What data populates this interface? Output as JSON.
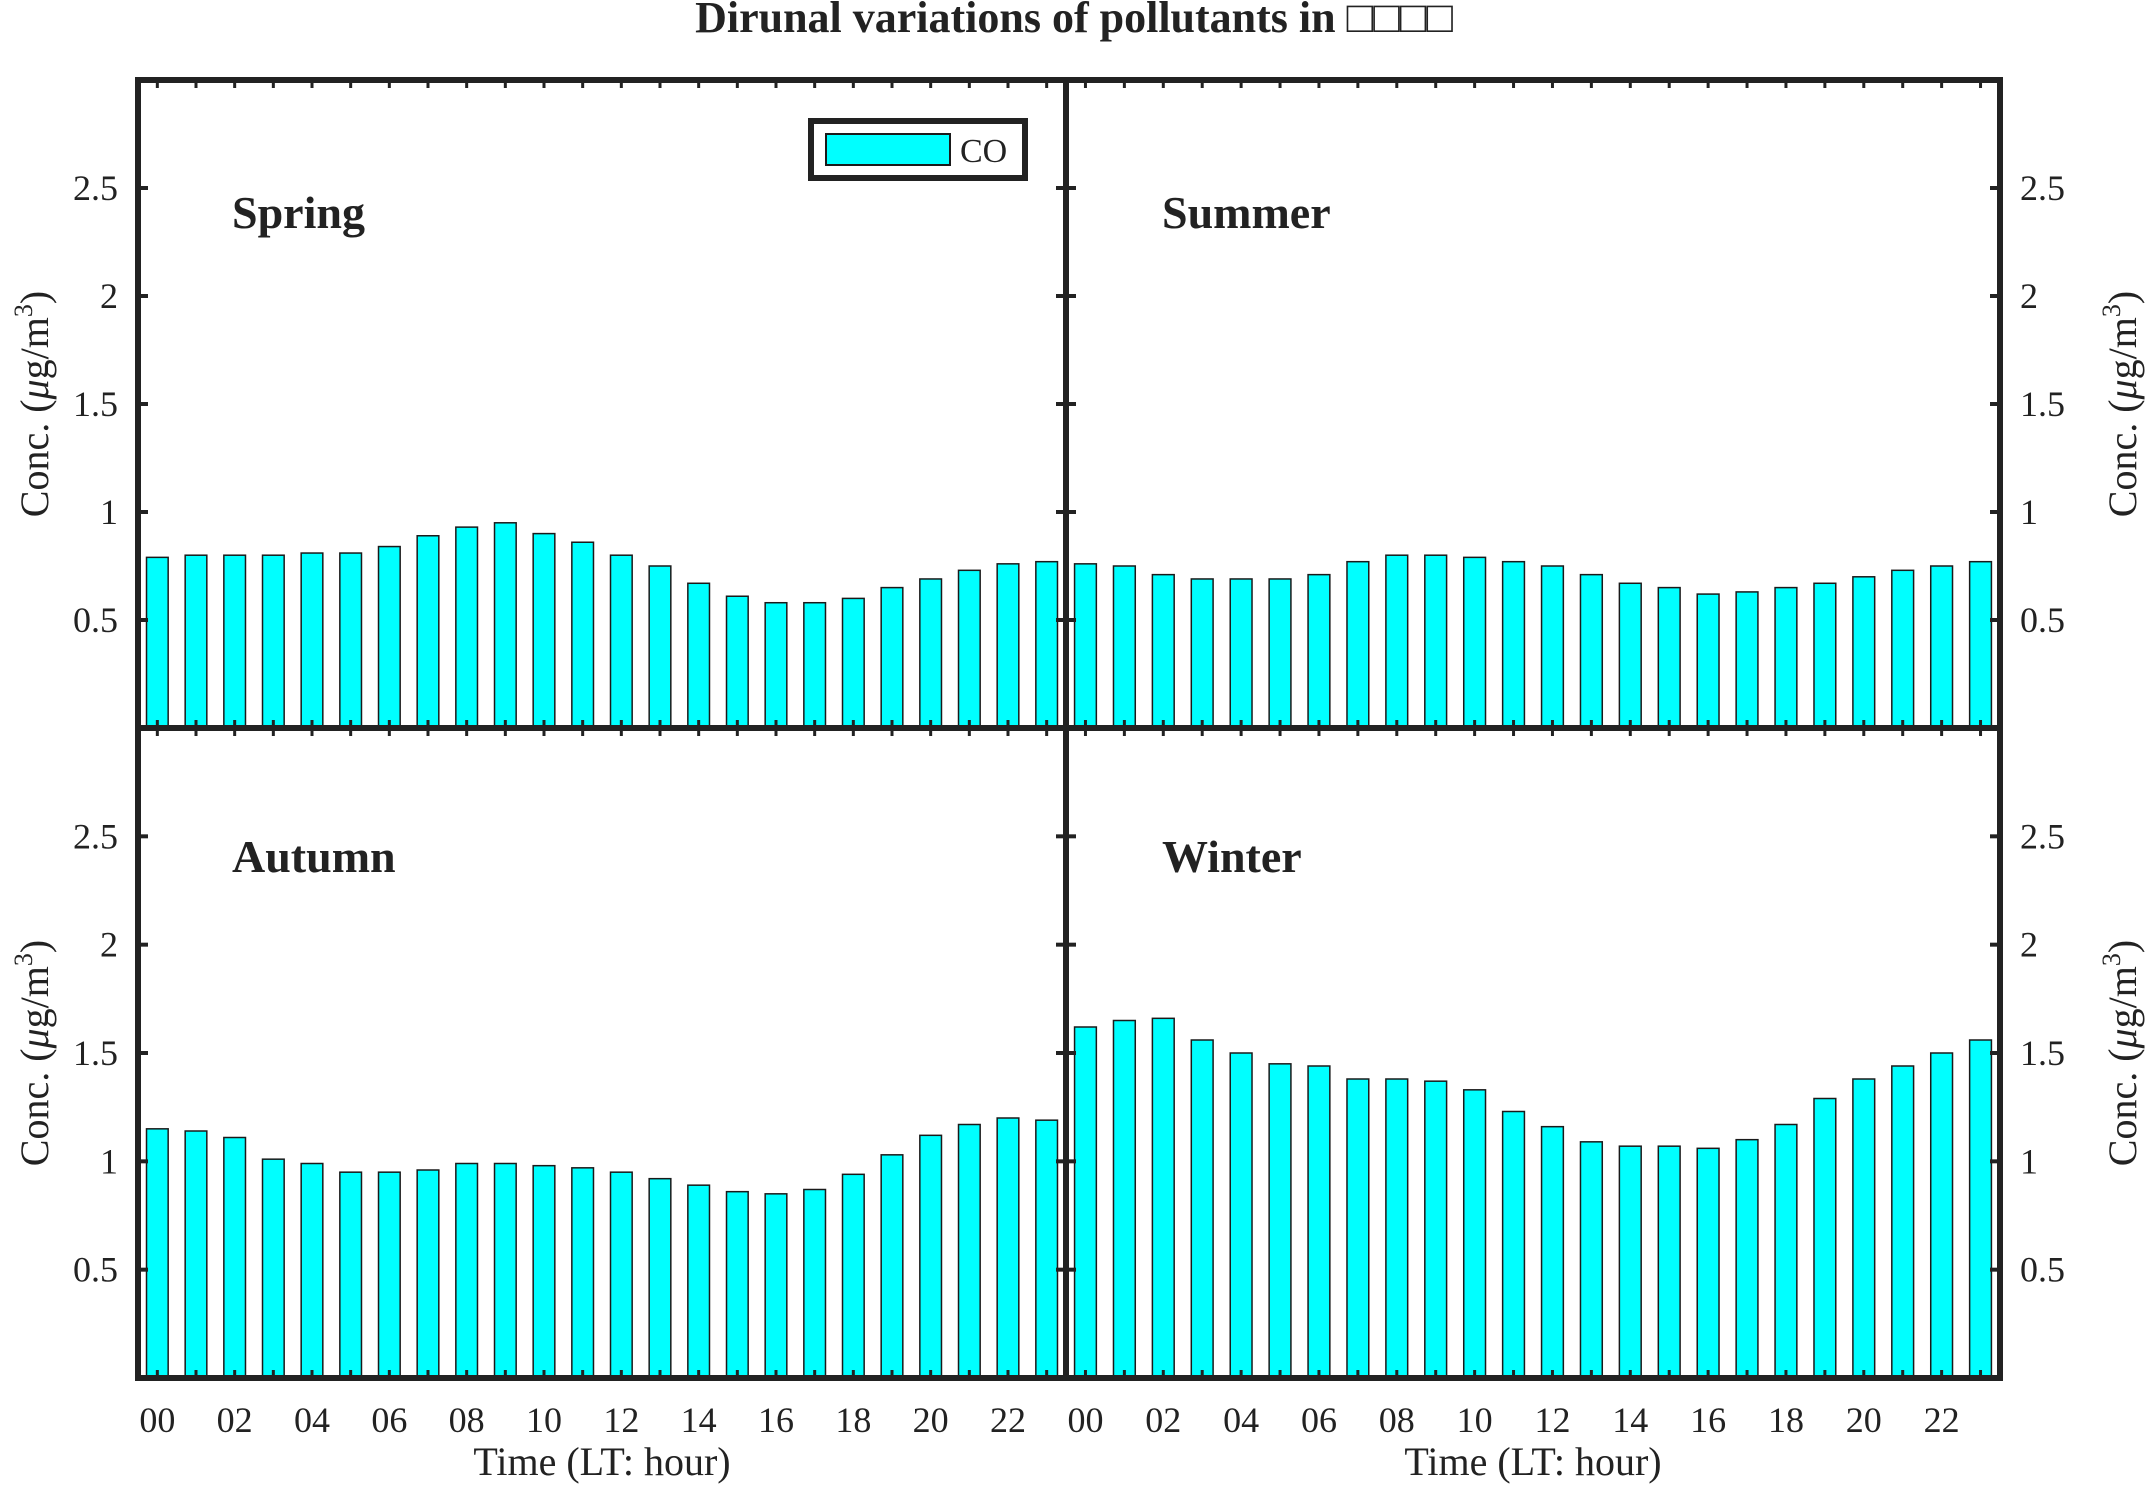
{
  "chart_data": {
    "type": "bar",
    "title": "Dirunal variations of pollutants in □□□□",
    "xlabel": "Time (LT: hour)",
    "ylabel": "Conc. (μg/m3)",
    "ylabel_main": "Conc. (",
    "ylabel_mu": "μ",
    "ylabel_unit": "g/m",
    "ylabel_sup": "3",
    "ylabel_close": ")",
    "ylim": [
      0,
      3
    ],
    "yticks": [
      "0.5",
      "1",
      "1.5",
      "2",
      "2.5"
    ],
    "ytick_values": [
      0.5,
      1,
      1.5,
      2,
      2.5
    ],
    "xticks": [
      "00",
      "02",
      "04",
      "06",
      "08",
      "10",
      "12",
      "14",
      "16",
      "18",
      "20",
      "22"
    ],
    "categories": [
      "00",
      "01",
      "02",
      "03",
      "04",
      "05",
      "06",
      "07",
      "08",
      "09",
      "10",
      "11",
      "12",
      "13",
      "14",
      "15",
      "16",
      "17",
      "18",
      "19",
      "20",
      "21",
      "22",
      "23"
    ],
    "legend": {
      "label": "CO",
      "placement": "top-right of first panel"
    },
    "bar_color": "#00ffff",
    "panels": [
      {
        "name": "Spring",
        "values": [
          0.79,
          0.8,
          0.8,
          0.8,
          0.81,
          0.81,
          0.84,
          0.89,
          0.93,
          0.95,
          0.9,
          0.86,
          0.8,
          0.75,
          0.67,
          0.61,
          0.58,
          0.58,
          0.6,
          0.65,
          0.69,
          0.73,
          0.76,
          0.77
        ]
      },
      {
        "name": "Summer",
        "values": [
          0.76,
          0.75,
          0.71,
          0.69,
          0.69,
          0.69,
          0.71,
          0.77,
          0.8,
          0.8,
          0.79,
          0.77,
          0.75,
          0.71,
          0.67,
          0.65,
          0.62,
          0.63,
          0.65,
          0.67,
          0.7,
          0.73,
          0.75,
          0.77
        ]
      },
      {
        "name": "Autumn",
        "values": [
          1.15,
          1.14,
          1.11,
          1.01,
          0.99,
          0.95,
          0.95,
          0.96,
          0.99,
          0.99,
          0.98,
          0.97,
          0.95,
          0.92,
          0.89,
          0.86,
          0.85,
          0.87,
          0.94,
          1.03,
          1.12,
          1.17,
          1.2,
          1.19
        ]
      },
      {
        "name": "Winter",
        "values": [
          1.62,
          1.65,
          1.66,
          1.56,
          1.5,
          1.45,
          1.44,
          1.38,
          1.38,
          1.37,
          1.33,
          1.23,
          1.16,
          1.09,
          1.07,
          1.07,
          1.06,
          1.1,
          1.17,
          1.29,
          1.38,
          1.44,
          1.5,
          1.56
        ]
      }
    ]
  }
}
